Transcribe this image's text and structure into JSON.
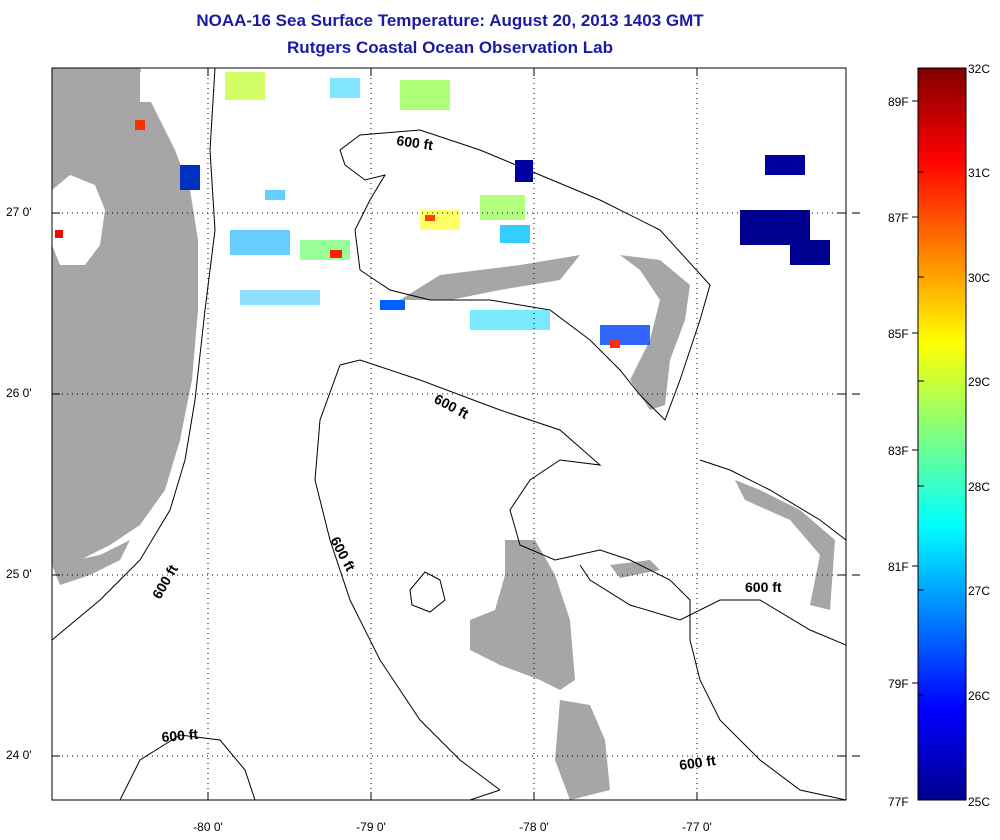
{
  "header": {
    "title": "NOAA-16 Sea Surface Temperature:  August 20, 2013 1403 GMT",
    "subtitle": "Rutgers Coastal Ocean Observation Lab"
  },
  "axes": {
    "lat_labels": [
      "27 0'",
      "26 0'",
      "25 0'",
      "24 0'"
    ],
    "lon_labels": [
      "-80 0'",
      "-79 0'",
      "-78 0'",
      "-77 0'"
    ]
  },
  "contours": {
    "label": "600 ft"
  },
  "colorbar": {
    "celsius_labels": [
      "32C",
      "31C",
      "30C",
      "29C",
      "28C",
      "27C",
      "26C",
      "25C"
    ],
    "fahrenheit_labels": [
      "89F",
      "87F",
      "85F",
      "83F",
      "81F",
      "79F",
      "77F"
    ],
    "colors": [
      "#00008f",
      "#0000ff",
      "#0080ff",
      "#00ffff",
      "#80ff80",
      "#ffff00",
      "#ff8000",
      "#ff0000",
      "#800000"
    ]
  },
  "colors": {
    "title": "#1a1aa6",
    "land": "#a6a6a6",
    "cloud": "#ffffff",
    "grid": "#000000"
  }
}
